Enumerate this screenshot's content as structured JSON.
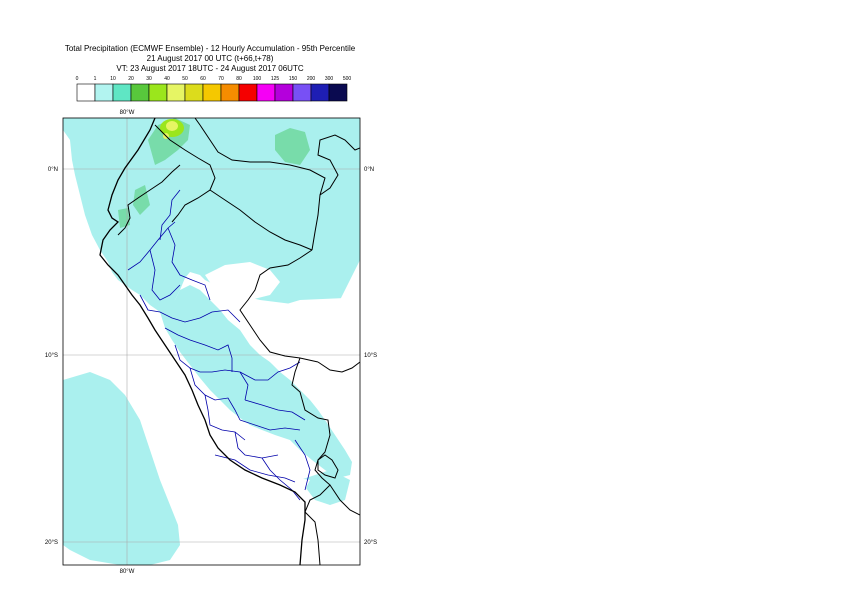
{
  "title": {
    "line1": "Total Precipitation (ECMWF Ensemble) - 12 Hourly Accumulation - 95th Percentile",
    "line2": "21 August 2017 00 UTC (t+66,t+78)",
    "line3": "VT: 23 August 2017 18UTC - 24 August 2017 06UTC"
  },
  "legend": {
    "ticks": [
      "0",
      "1",
      "10",
      "20",
      "30",
      "40",
      "50",
      "60",
      "70",
      "80",
      "100",
      "125",
      "150",
      "200",
      "300",
      "500"
    ],
    "colors": [
      "#ffffff",
      "#b2f4f0",
      "#5fe6c4",
      "#58c83c",
      "#9be61c",
      "#e6f564",
      "#dcdc1c",
      "#f5c800",
      "#f58c00",
      "#f50000",
      "#f500f5",
      "#b400dc",
      "#7850f5",
      "#1e1eb4",
      "#0a0a50"
    ]
  },
  "map": {
    "lon_labels": {
      "top": "80°W",
      "bottom": "80°W"
    },
    "lat_labels": [
      {
        "text": "0°N"
      },
      {
        "text": "10°S"
      },
      {
        "text": "20°S"
      }
    ],
    "colors": {
      "light_precip": "#aaf0ee",
      "green_precip": "#78dcaa",
      "yellow_precip": "#e6f564",
      "coast": "#000000",
      "border": "#000000",
      "regions": "#0000aa",
      "grid": "#aaaaaa"
    }
  }
}
